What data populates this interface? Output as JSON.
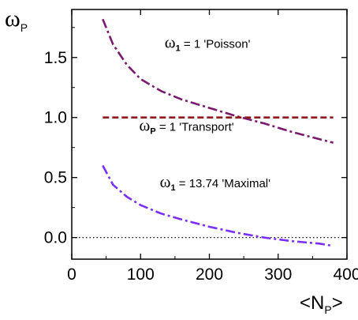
{
  "chart_data": {
    "type": "line",
    "y_axis": {
      "symbol": "ω",
      "subscript": "P"
    },
    "x_axis": {
      "open": "<N",
      "subscript": "P",
      "close": ">"
    },
    "xlim": [
      0,
      400
    ],
    "ylim": [
      -0.18,
      1.9
    ],
    "x_ticks": [
      0,
      100,
      200,
      300,
      400
    ],
    "y_ticks": [
      {
        "value": 0.0,
        "label": "0.0"
      },
      {
        "value": 0.5,
        "label": "0.5"
      },
      {
        "value": 1.0,
        "label": "1.0"
      },
      {
        "value": 1.5,
        "label": "1.5"
      }
    ],
    "grid": false,
    "reference_line": {
      "y": 0.0,
      "style": "dotted",
      "color": "#000000"
    },
    "series": [
      {
        "style": "dash-dot",
        "color": "#7a1a6e",
        "x": [
          45,
          60,
          80,
          100,
          130,
          160,
          200,
          240,
          280,
          320,
          360,
          380
        ],
        "y": [
          1.82,
          1.61,
          1.44,
          1.32,
          1.22,
          1.15,
          1.08,
          1.01,
          0.95,
          0.88,
          0.82,
          0.79
        ]
      },
      {
        "style": "dashed",
        "color": "#8b1a1a",
        "x": [
          45,
          380
        ],
        "y": [
          1.0,
          1.0
        ]
      },
      {
        "style": "dash-dot",
        "color": "#7b2ff7",
        "x": [
          45,
          60,
          80,
          100,
          130,
          160,
          200,
          240,
          280,
          320,
          360,
          380
        ],
        "y": [
          0.6,
          0.44,
          0.34,
          0.27,
          0.2,
          0.15,
          0.09,
          0.04,
          0.0,
          -0.03,
          -0.05,
          -0.07
        ]
      }
    ],
    "annotations": [
      {
        "symbol": "ω",
        "subscript": "1",
        "text": " = 1  'Poisson'",
        "x": 135,
        "y": 1.58
      },
      {
        "symbol": "ω",
        "subscript": "P",
        "text": " = 1  'Transport'",
        "x": 98,
        "y": 0.89
      },
      {
        "symbol": "ω",
        "subscript": "1",
        "text": " = 13.74  'Maximal'",
        "x": 128,
        "y": 0.42
      }
    ]
  }
}
